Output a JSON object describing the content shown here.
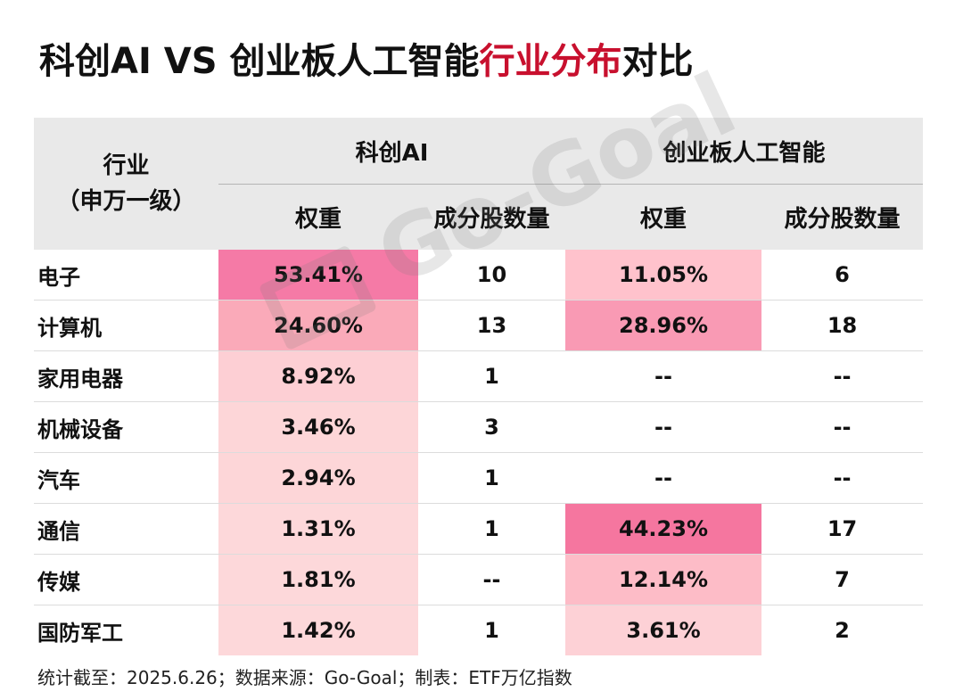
{
  "title": {
    "part1": "科创AI VS 创业板人工智能",
    "highlight": "行业分布",
    "part2": "对比",
    "highlight_color": "#c8102e"
  },
  "table": {
    "header": {
      "industry_line1": "行业",
      "industry_line2": "（申万一级）",
      "group1": "科创AI",
      "group2": "创业板人工智能",
      "weight": "权重",
      "count": "成分股数量"
    },
    "rows": [
      {
        "industry": "电子",
        "kc_weight": "53.41%",
        "kc_count": "10",
        "cy_weight": "11.05%",
        "cy_count": "6",
        "kc_bg": "#f57aa6",
        "cy_bg": "#ffc2cc"
      },
      {
        "industry": "计算机",
        "kc_weight": "24.60%",
        "kc_count": "13",
        "cy_weight": "28.96%",
        "cy_count": "18",
        "kc_bg": "#faaab9",
        "cy_bg": "#f99ab4"
      },
      {
        "industry": "家用电器",
        "kc_weight": "8.92%",
        "kc_count": "1",
        "cy_weight": "--",
        "cy_count": "--",
        "kc_bg": "#fdcfd4",
        "cy_bg": "#ffffff"
      },
      {
        "industry": "机械设备",
        "kc_weight": "3.46%",
        "kc_count": "3",
        "cy_weight": "--",
        "cy_count": "--",
        "kc_bg": "#fdd6d8",
        "cy_bg": "#ffffff"
      },
      {
        "industry": "汽车",
        "kc_weight": "2.94%",
        "kc_count": "1",
        "cy_weight": "--",
        "cy_count": "--",
        "kc_bg": "#fdd6d8",
        "cy_bg": "#ffffff"
      },
      {
        "industry": "通信",
        "kc_weight": "1.31%",
        "kc_count": "1",
        "cy_weight": "44.23%",
        "cy_count": "17",
        "kc_bg": "#fdd8da",
        "cy_bg": "#f5769f"
      },
      {
        "industry": "传媒",
        "kc_weight": "1.81%",
        "kc_count": "--",
        "cy_weight": "12.14%",
        "cy_count": "7",
        "kc_bg": "#fdd8da",
        "cy_bg": "#fdbcc7"
      },
      {
        "industry": "国防军工",
        "kc_weight": "1.42%",
        "kc_count": "1",
        "cy_weight": "3.61%",
        "cy_count": "2",
        "kc_bg": "#fdd8da",
        "cy_bg": "#fdd1d6"
      }
    ]
  },
  "footer": "统计截至：2025.6.26；数据来源：Go-Goal；制表：ETF万亿指数",
  "watermark": "Go-Goal"
}
